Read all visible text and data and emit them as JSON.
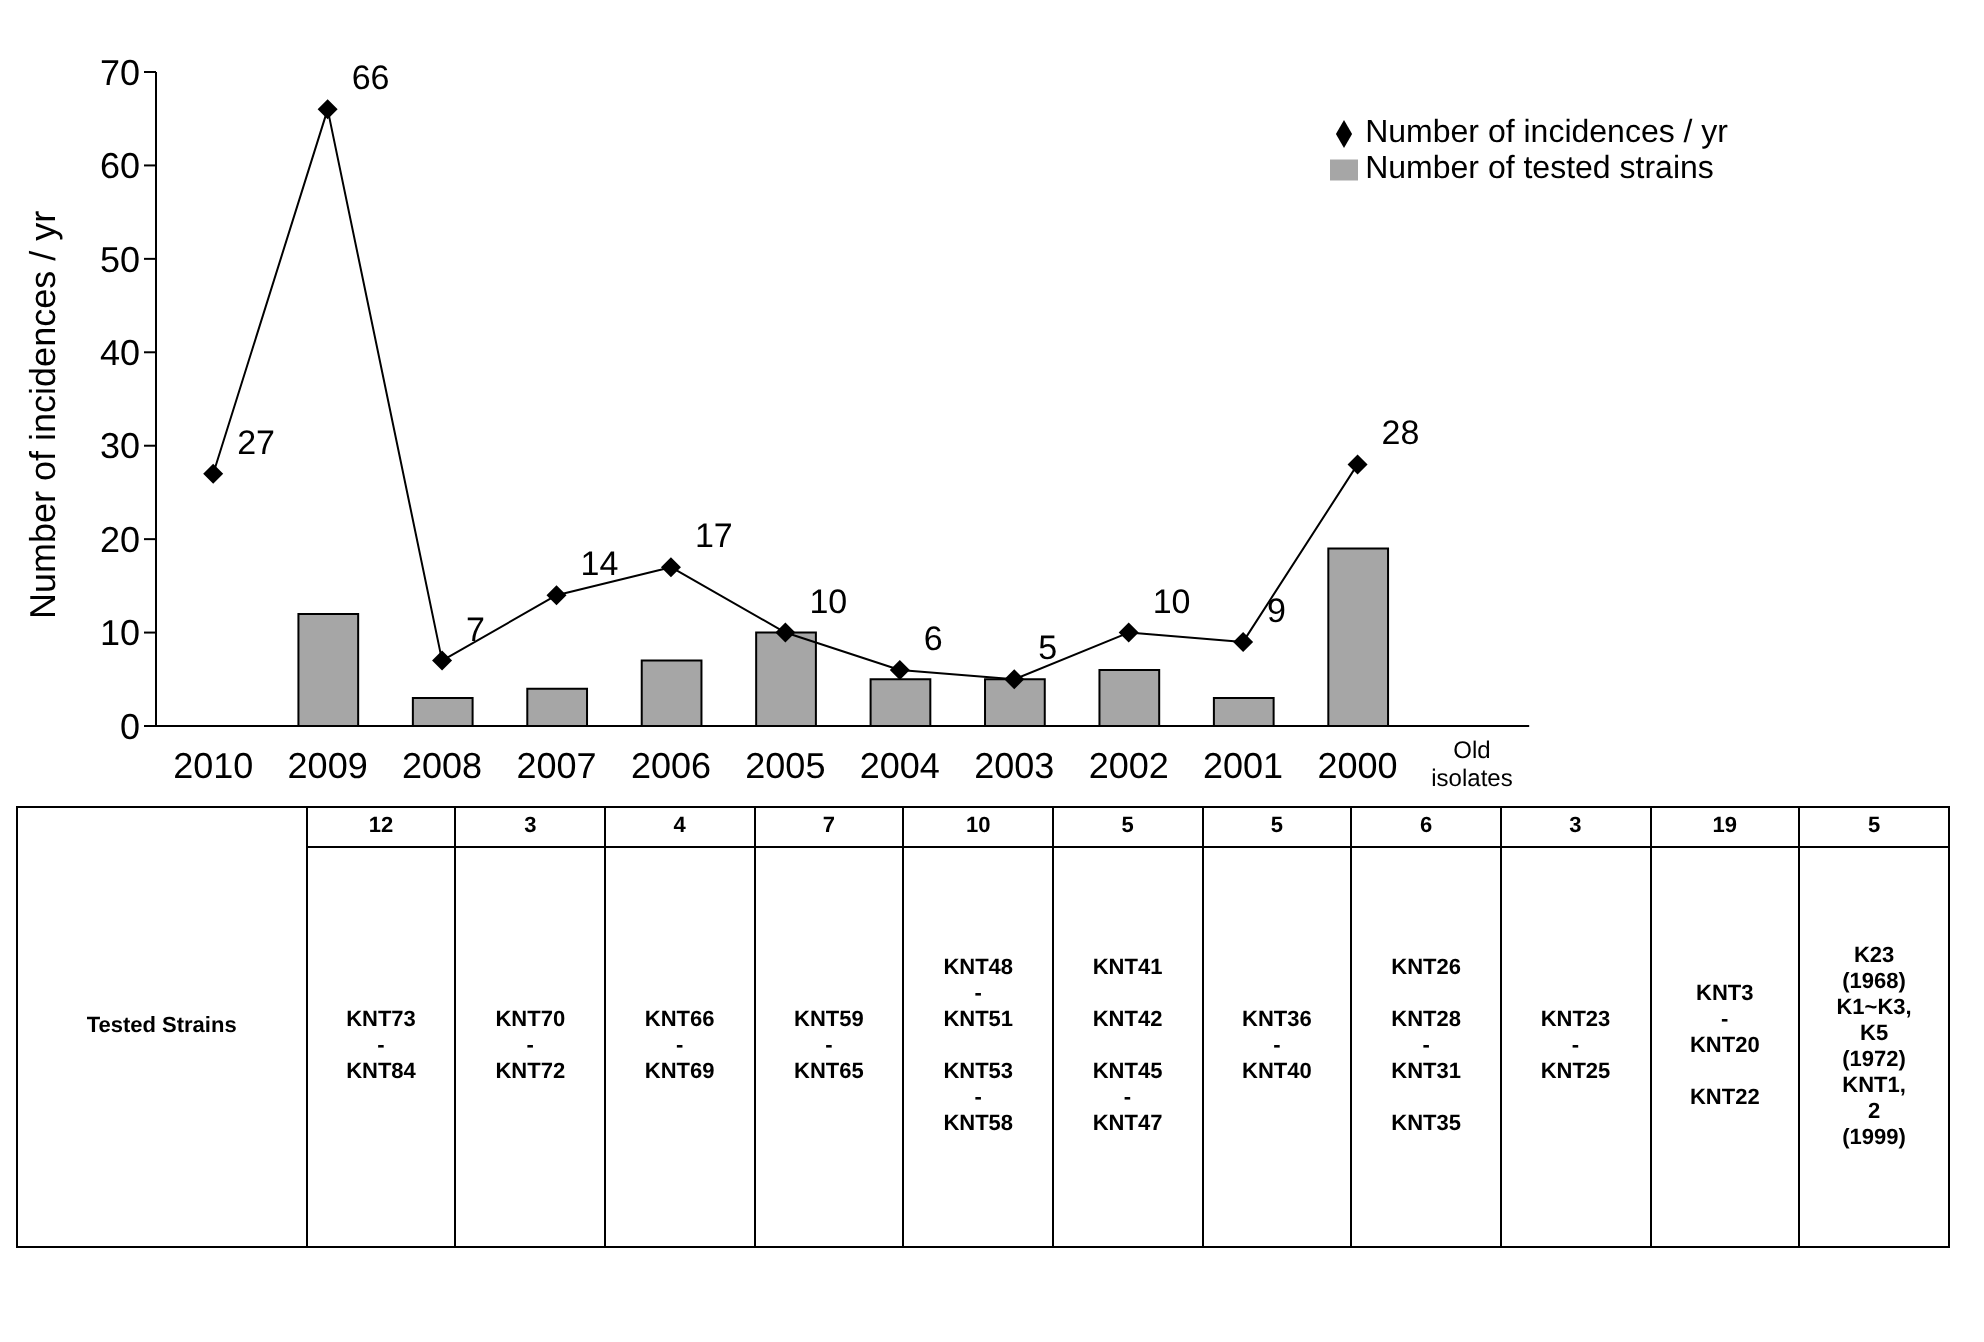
{
  "chart_data": {
    "type": "bar",
    "ylabel": "Number of incidences / yr",
    "categories": [
      "2010",
      "2009",
      "2008",
      "2007",
      "2006",
      "2005",
      "2004",
      "2003",
      "2002",
      "2001",
      "2000",
      "Old\nisolates"
    ],
    "series": [
      {
        "name": "Number of tested strains",
        "color": "#a6a6a6",
        "values": [
          null,
          12,
          3,
          4,
          7,
          10,
          5,
          5,
          6,
          3,
          19,
          null
        ]
      },
      {
        "name": "Number of incidences / yr",
        "type": "line",
        "color": "#000000",
        "values": [
          27,
          66,
          7,
          14,
          17,
          10,
          6,
          5,
          10,
          9,
          28,
          null
        ],
        "marker": "diamond",
        "data_labels": true
      }
    ],
    "ylim": [
      0,
      70
    ],
    "yticks": [
      0,
      10,
      20,
      30,
      40,
      50,
      60,
      70
    ],
    "legend": "top right",
    "annotations": [
      "Tested Strains",
      "12",
      "3",
      "4",
      "7",
      "10",
      "5",
      "5",
      "6",
      "3",
      "19",
      "5",
      "KNT73\n-\nKNT84",
      "KNT70\n-\nKNT72",
      "KNT66\n-\nKNT69",
      "KNT59\n-\nKNT65",
      "KNT48\n-\nKNT51\n\nKNT53\n-\nKNT58",
      "KNT41\n\nKNT42\n\nKNT45\n-\nKNT47",
      "KNT36\n-\nKNT40",
      "KNT26\n\nKNT28\n-\nKNT31\n\nKNT35",
      "KNT23\n-\nKNT25",
      "KNT3\n-\nKNT20\n\nKNT22",
      "K23\n(1968)\nK1~K3,\nK5\n(1972)\nKNT1,\n2\n(1999)"
    ]
  }
}
